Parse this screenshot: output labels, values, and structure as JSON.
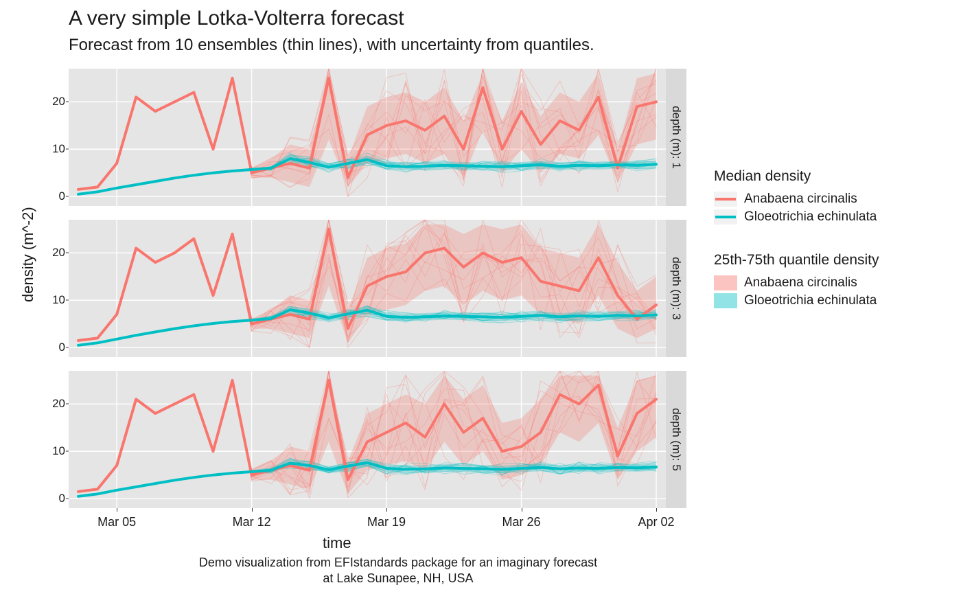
{
  "title": "A very simple Lotka-Volterra forecast",
  "subtitle": "Forecast from 10 ensembles (thin lines), with uncertainty from quantiles.",
  "xlabel": "time",
  "ylabel": "density (m^-2)",
  "caption": "Demo visualization from EFIstandards package for an imaginary forecast at Lake Sunapee, NH, USA",
  "colors": {
    "series_a_line": "#f8766d",
    "series_a_fill": "#f8766d",
    "series_b_line": "#00bfc4",
    "series_b_fill": "#00bfc4",
    "panel_bg": "#e5e5e5",
    "grid_major": "#ffffff",
    "strip_bg": "#d9d9d9",
    "text": "#1a1a1a"
  },
  "fill_opacity": 0.28,
  "ensemble_opacity": 0.3,
  "median_line_width": 4,
  "ensemble_line_width": 1,
  "n_ensembles": 10,
  "x": {
    "n_days": 31,
    "ticks": [
      {
        "day": 2,
        "label": "Mar 05"
      },
      {
        "day": 9,
        "label": "Mar 12"
      },
      {
        "day": 16,
        "label": "Mar 19"
      },
      {
        "day": 23,
        "label": "Mar 26"
      },
      {
        "day": 30,
        "label": "Apr 02"
      }
    ]
  },
  "y": {
    "min": -2,
    "max": 27,
    "ticks": [
      0,
      10,
      20
    ]
  },
  "facets": [
    {
      "strip_label": "depth (m): 1",
      "series_a_median": [
        1.5,
        2,
        7,
        21,
        18,
        20,
        22,
        10,
        25,
        5,
        6,
        7,
        6,
        25,
        4,
        13,
        15,
        16,
        14,
        17,
        10,
        23,
        10,
        18,
        11,
        16,
        14,
        21,
        6,
        19,
        20
      ],
      "series_a_q25": [
        1.5,
        2,
        7,
        21,
        18,
        20,
        22,
        10,
        25,
        4,
        4,
        3,
        2,
        12,
        2,
        7,
        8,
        9,
        7,
        9,
        4,
        14,
        5,
        10,
        5,
        9,
        8,
        13,
        3,
        11,
        12
      ],
      "series_a_q75": [
        1.5,
        2,
        7,
        21,
        18,
        20,
        22,
        10,
        25,
        6,
        8,
        11,
        10,
        26,
        8,
        19,
        21,
        22,
        20,
        23,
        16,
        26,
        16,
        24,
        17,
        22,
        20,
        26,
        10,
        25,
        26
      ],
      "series_b_median": [
        0.5,
        1,
        1.8,
        2.5,
        3.2,
        3.9,
        4.5,
        5.0,
        5.4,
        5.7,
        6.0,
        8.0,
        7.2,
        6.2,
        7.0,
        7.8,
        6.5,
        6.3,
        6.4,
        6.6,
        6.5,
        6.4,
        6.3,
        6.5,
        6.7,
        6.4,
        6.6,
        6.5,
        6.7,
        6.6,
        6.8
      ],
      "series_b_q25": [
        0.5,
        1,
        1.8,
        2.5,
        3.2,
        3.9,
        4.5,
        5.0,
        5.4,
        5.5,
        5.6,
        7.2,
        6.4,
        5.5,
        6.2,
        6.9,
        5.7,
        5.5,
        5.6,
        5.8,
        5.7,
        5.6,
        5.5,
        5.7,
        5.9,
        5.6,
        5.8,
        5.7,
        5.9,
        5.8,
        6.0
      ],
      "series_b_q75": [
        0.5,
        1,
        1.8,
        2.5,
        3.2,
        3.9,
        4.5,
        5.0,
        5.4,
        5.9,
        6.4,
        8.8,
        8.0,
        6.9,
        7.8,
        8.7,
        7.3,
        7.1,
        7.2,
        7.4,
        7.3,
        7.2,
        7.1,
        7.3,
        7.5,
        7.2,
        7.4,
        7.3,
        7.5,
        7.4,
        7.6
      ]
    },
    {
      "strip_label": "depth (m): 3",
      "series_a_median": [
        1.5,
        2,
        7,
        21,
        18,
        20,
        23,
        11,
        24,
        5,
        6,
        7,
        6,
        25,
        4,
        13,
        15,
        16,
        20,
        21,
        17,
        20,
        18,
        19,
        14,
        13,
        12,
        19,
        11,
        6,
        9
      ],
      "series_a_q25": [
        1.5,
        2,
        7,
        21,
        18,
        20,
        23,
        11,
        24,
        4,
        4,
        3,
        2,
        13,
        1,
        7,
        8,
        9,
        12,
        13,
        9,
        12,
        10,
        11,
        7,
        6,
        5,
        11,
        4,
        2,
        4
      ],
      "series_a_q75": [
        1.5,
        2,
        7,
        21,
        18,
        20,
        23,
        11,
        24,
        6,
        8,
        11,
        10,
        26,
        8,
        19,
        21,
        22,
        26,
        26,
        24,
        26,
        25,
        26,
        21,
        20,
        19,
        26,
        18,
        12,
        15
      ],
      "series_b_median": [
        0.5,
        1,
        1.8,
        2.6,
        3.3,
        4.0,
        4.6,
        5.1,
        5.5,
        5.8,
        6.1,
        8.0,
        7.3,
        6.3,
        7.1,
        7.9,
        6.6,
        6.4,
        6.5,
        6.7,
        6.6,
        6.5,
        6.4,
        6.6,
        6.8,
        6.5,
        6.7,
        6.6,
        6.8,
        6.7,
        6.9
      ],
      "series_b_q25": [
        0.5,
        1,
        1.8,
        2.6,
        3.3,
        4.0,
        4.6,
        5.1,
        5.5,
        5.6,
        5.7,
        7.2,
        6.5,
        5.6,
        6.3,
        7.0,
        5.8,
        5.6,
        5.7,
        5.9,
        5.8,
        5.7,
        5.6,
        5.8,
        6.0,
        5.7,
        5.9,
        5.8,
        6.0,
        5.9,
        6.1
      ],
      "series_b_q75": [
        0.5,
        1,
        1.8,
        2.6,
        3.3,
        4.0,
        4.6,
        5.1,
        5.5,
        6.0,
        6.5,
        8.8,
        8.1,
        7.0,
        7.9,
        8.8,
        7.4,
        7.2,
        7.3,
        7.5,
        7.4,
        7.3,
        7.2,
        7.4,
        7.6,
        7.3,
        7.5,
        7.4,
        7.6,
        7.5,
        7.7
      ]
    },
    {
      "strip_label": "depth (m): 5",
      "series_a_median": [
        1.5,
        2,
        7,
        21,
        18,
        20,
        22,
        10,
        25,
        5,
        6,
        7,
        6,
        25,
        4,
        12,
        14,
        16,
        13,
        20,
        14,
        17,
        10,
        11,
        14,
        22,
        20,
        24,
        9,
        18,
        21
      ],
      "series_a_q25": [
        1.5,
        2,
        7,
        21,
        18,
        20,
        22,
        10,
        25,
        4,
        4,
        3,
        2,
        12,
        1,
        6,
        7,
        8,
        6,
        12,
        7,
        10,
        4,
        5,
        7,
        14,
        12,
        16,
        4,
        10,
        13
      ],
      "series_a_q75": [
        1.5,
        2,
        7,
        21,
        18,
        20,
        22,
        10,
        25,
        6,
        8,
        11,
        10,
        26,
        8,
        18,
        20,
        22,
        20,
        26,
        21,
        24,
        16,
        17,
        21,
        26,
        26,
        26,
        15,
        25,
        26
      ],
      "series_b_median": [
        0.5,
        1,
        1.8,
        2.5,
        3.2,
        3.9,
        4.5,
        5.0,
        5.4,
        5.7,
        6.0,
        7.5,
        7.0,
        6.1,
        6.9,
        7.6,
        6.4,
        6.2,
        6.3,
        6.5,
        6.4,
        6.3,
        6.2,
        6.4,
        6.6,
        6.3,
        6.5,
        6.4,
        6.6,
        6.5,
        6.7
      ],
      "series_b_q25": [
        0.5,
        1,
        1.8,
        2.5,
        3.2,
        3.9,
        4.5,
        5.0,
        5.4,
        5.5,
        5.6,
        6.8,
        6.3,
        5.4,
        6.1,
        6.8,
        5.6,
        5.4,
        5.5,
        5.7,
        5.6,
        5.5,
        5.4,
        5.6,
        5.8,
        5.5,
        5.7,
        5.6,
        5.8,
        5.7,
        5.9
      ],
      "series_b_q75": [
        0.5,
        1,
        1.8,
        2.5,
        3.2,
        3.9,
        4.5,
        5.0,
        5.4,
        5.9,
        6.4,
        8.3,
        7.8,
        6.8,
        7.7,
        8.5,
        7.2,
        7.0,
        7.1,
        7.3,
        7.2,
        7.1,
        7.0,
        7.2,
        7.4,
        7.1,
        7.3,
        7.2,
        7.4,
        7.3,
        7.5
      ]
    }
  ],
  "legend": {
    "median_title": "Median density",
    "quantile_title": "25th-75th quantile density",
    "series_a_name": "Anabaena circinalis",
    "series_b_name": "Gloeotrichia echinulata"
  }
}
